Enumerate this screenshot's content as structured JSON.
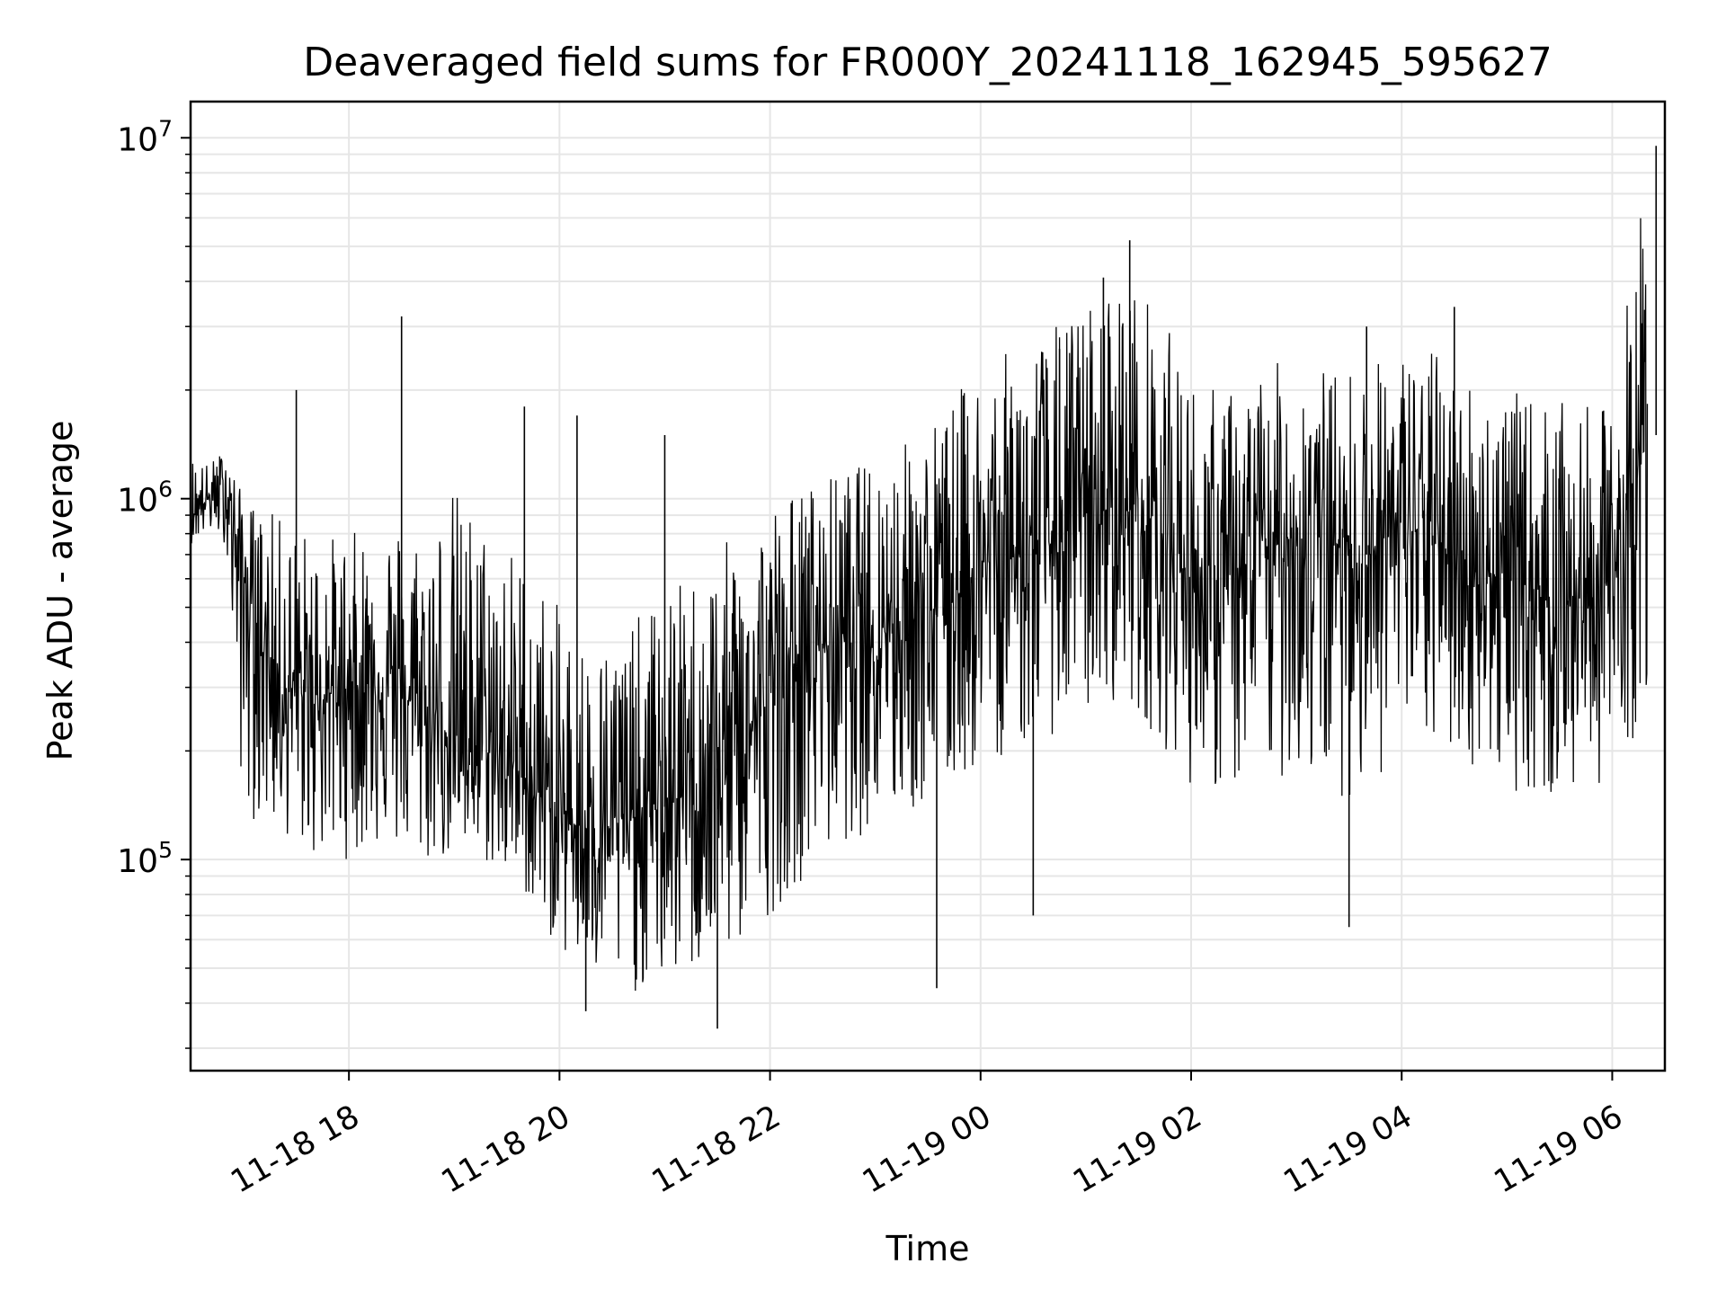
{
  "chart_data": {
    "type": "line",
    "title": "Deaveraged field sums for FR000Y_20241118_162945_595627",
    "xlabel": "Time",
    "ylabel": "Peak ADU - average",
    "yscale": "log",
    "grid": true,
    "legend": "none",
    "x_range": [
      "2024-11-18 16:29:45",
      "2024-11-19 06:30:00"
    ],
    "ylim": [
      26000,
      12600000
    ],
    "x_tick_labels": [
      "11-18 18",
      "11-18 20",
      "11-18 22",
      "11-19 00",
      "11-19 02",
      "11-19 04",
      "11-19 06"
    ],
    "x_tick_times": [
      "2024-11-18 18:00",
      "2024-11-18 20:00",
      "2024-11-18 22:00",
      "2024-11-19 00:00",
      "2024-11-19 02:00",
      "2024-11-19 04:00",
      "2024-11-19 06:00"
    ],
    "y_ticks": [
      {
        "value": 100000,
        "base": "10",
        "exp": "5"
      },
      {
        "value": 1000000,
        "base": "10",
        "exp": "6"
      },
      {
        "value": 10000000,
        "base": "10",
        "exp": "7"
      }
    ],
    "series": [
      {
        "color": "#000000",
        "x": [
          "2024-11-18 16:30",
          "2024-11-18 16:40",
          "2024-11-18 16:50",
          "2024-11-18 17:00",
          "2024-11-18 17:20",
          "2024-11-18 17:40",
          "2024-11-18 18:00",
          "2024-11-18 18:20",
          "2024-11-18 18:40",
          "2024-11-18 19:00",
          "2024-11-18 19:20",
          "2024-11-18 19:40",
          "2024-11-18 20:00",
          "2024-11-18 20:20",
          "2024-11-18 20:40",
          "2024-11-18 21:00",
          "2024-11-18 21:20",
          "2024-11-18 21:40",
          "2024-11-18 22:00",
          "2024-11-18 22:20",
          "2024-11-18 22:40",
          "2024-11-18 23:00",
          "2024-11-18 23:20",
          "2024-11-18 23:40",
          "2024-11-19 00:00",
          "2024-11-19 00:20",
          "2024-11-19 00:40",
          "2024-11-19 01:00",
          "2024-11-19 01:20",
          "2024-11-19 01:40",
          "2024-11-19 02:00",
          "2024-11-19 02:20",
          "2024-11-19 02:40",
          "2024-11-19 03:00",
          "2024-11-19 03:20",
          "2024-11-19 03:40",
          "2024-11-19 04:00",
          "2024-11-19 04:20",
          "2024-11-19 04:40",
          "2024-11-19 05:00",
          "2024-11-19 05:20",
          "2024-11-19 05:40",
          "2024-11-19 06:00",
          "2024-11-19 06:20"
        ],
        "y": [
          900000,
          1000000,
          1100000,
          600000,
          300000,
          280000,
          300000,
          320000,
          260000,
          220000,
          200000,
          170000,
          130000,
          120000,
          130000,
          140000,
          160000,
          200000,
          280000,
          380000,
          420000,
          450000,
          480000,
          520000,
          650000,
          700000,
          750000,
          900000,
          950000,
          850000,
          600000,
          550000,
          700000,
          800000,
          750000,
          700000,
          850000,
          750000,
          650000,
          600000,
          550000,
          520000,
          600000,
          1500000
        ],
        "y_upper": [
          1350000,
          1250000,
          1400000,
          1000000,
          900000,
          800000,
          800000,
          900000,
          850000,
          1100000,
          850000,
          700000,
          500000,
          400000,
          450000,
          550000,
          650000,
          800000,
          1000000,
          1100000,
          1200000,
          1300000,
          1500000,
          1800000,
          2400000,
          2600000,
          3000000,
          3500000,
          4200000,
          3500000,
          2200000,
          2000000,
          2300000,
          2500000,
          2300000,
          2400000,
          2600000,
          2600000,
          2200000,
          2000000,
          1900000,
          1800000,
          1800000,
          9500000
        ],
        "y_lower": [
          750000,
          800000,
          750000,
          130000,
          120000,
          100000,
          100000,
          110000,
          95000,
          100000,
          95000,
          80000,
          55000,
          45000,
          42000,
          45000,
          48000,
          55000,
          70000,
          90000,
          110000,
          120000,
          130000,
          150000,
          180000,
          200000,
          220000,
          250000,
          280000,
          220000,
          160000,
          150000,
          160000,
          170000,
          150000,
          150000,
          200000,
          200000,
          180000,
          160000,
          140000,
          150000,
          170000,
          250000
        ],
        "spikes": [
          {
            "x": "2024-11-18 18:30",
            "y": 3200000
          },
          {
            "x": "2024-11-18 17:30",
            "y": 2000000
          },
          {
            "x": "2024-11-18 19:40",
            "y": 1800000
          },
          {
            "x": "2024-11-18 20:10",
            "y": 1700000
          },
          {
            "x": "2024-11-18 21:00",
            "y": 1500000
          },
          {
            "x": "2024-11-19 00:45",
            "y": 2600000
          },
          {
            "x": "2024-11-19 01:10",
            "y": 4100000
          },
          {
            "x": "2024-11-19 01:25",
            "y": 5200000
          },
          {
            "x": "2024-11-19 03:40",
            "y": 3000000
          },
          {
            "x": "2024-11-19 04:30",
            "y": 3400000
          },
          {
            "x": "2024-11-19 06:25",
            "y": 9500000
          },
          {
            "x": "2024-11-18 21:30",
            "y": 34000
          },
          {
            "x": "2024-11-18 20:15",
            "y": 38000
          },
          {
            "x": "2024-11-18 23:35",
            "y": 44000
          },
          {
            "x": "2024-11-19 00:30",
            "y": 70000
          },
          {
            "x": "2024-11-19 03:30",
            "y": 65000
          }
        ]
      }
    ]
  }
}
